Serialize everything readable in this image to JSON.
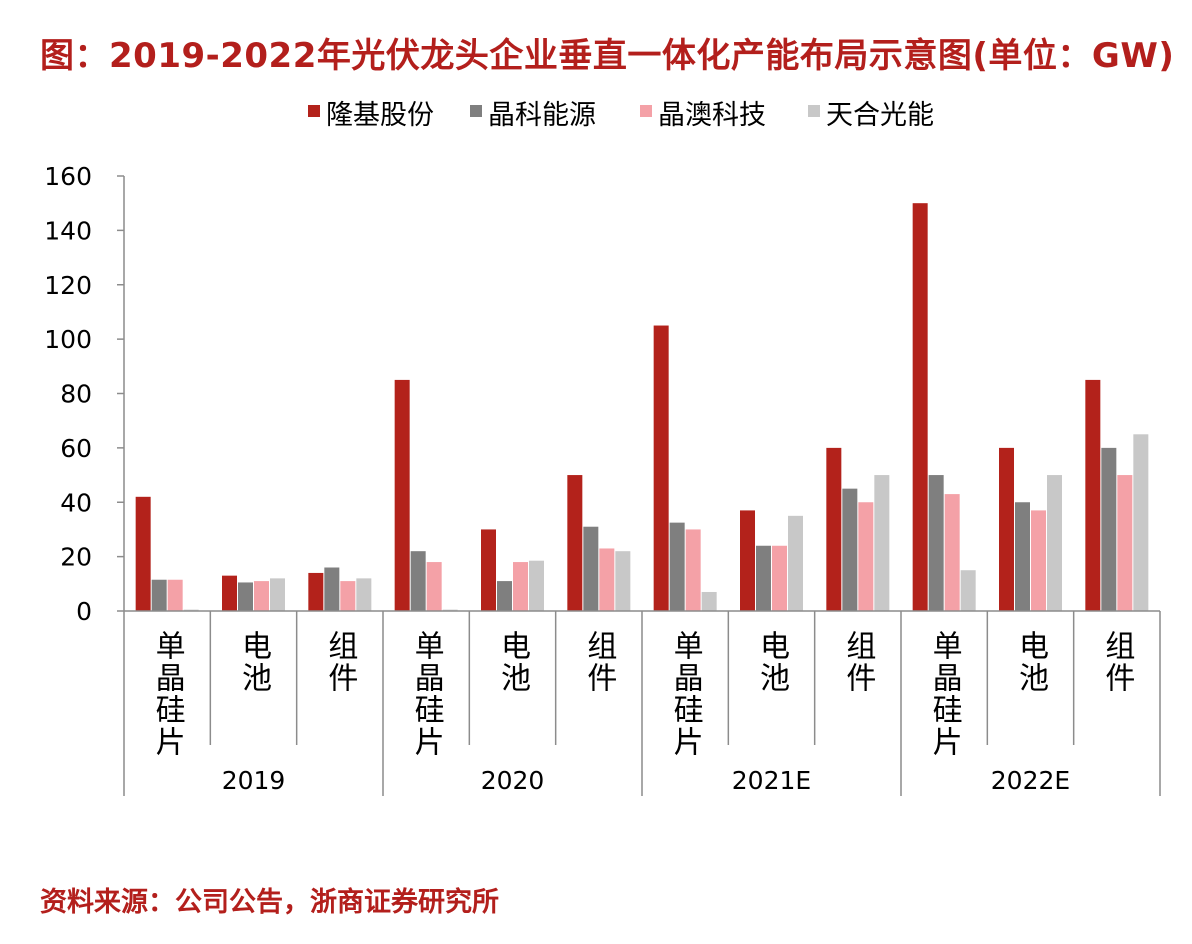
{
  "title": "图：2019-2022年光伏龙头企业垂直一体化产能布局示意图(单位：GW)",
  "source": "资料来源：公司公告，浙商证券研究所",
  "chart_data": {
    "type": "bar",
    "groups": [
      "2019",
      "2020",
      "2021E",
      "2022E"
    ],
    "subcategories": [
      "单晶硅片",
      "电池",
      "组件"
    ],
    "categories": [
      "2019 单晶硅片",
      "2019 电池",
      "2019 组件",
      "2020 单晶硅片",
      "2020 电池",
      "2020 组件",
      "2021E 单晶硅片",
      "2021E 电池",
      "2021E 组件",
      "2022E 单晶硅片",
      "2022E 电池",
      "2022E 组件"
    ],
    "series": [
      {
        "name": "隆基股份",
        "color": "#b3221b",
        "values": [
          42,
          13,
          14,
          85,
          30,
          50,
          105,
          37,
          60,
          150,
          60,
          85
        ]
      },
      {
        "name": "晶科能源",
        "color": "#7f7f7f",
        "values": [
          11.5,
          10.5,
          16,
          22,
          11,
          31,
          32.5,
          24,
          45,
          50,
          40,
          60
        ]
      },
      {
        "name": "晶澳科技",
        "color": "#f4a1a7",
        "values": [
          11.5,
          11,
          11,
          18,
          18,
          23,
          30,
          24,
          40,
          43,
          37,
          50
        ]
      },
      {
        "name": "天合光能",
        "color": "#c8c8c8",
        "values": [
          0.5,
          12,
          12,
          0.5,
          18.5,
          22,
          7,
          35,
          50,
          15,
          50,
          65
        ]
      }
    ],
    "ylim": [
      0,
      160
    ],
    "yticks": [
      "0",
      "20",
      "40",
      "60",
      "80",
      "100",
      "120",
      "140",
      "160"
    ],
    "grid": false,
    "legend": "top"
  }
}
